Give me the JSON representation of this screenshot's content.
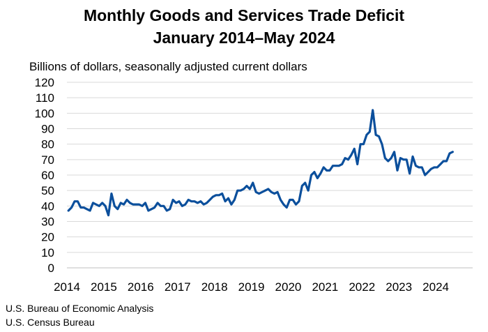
{
  "chart_data": {
    "type": "line",
    "title": "Monthly Goods and Services Trade Deficit",
    "subtitle": "January 2014–May 2024",
    "ylabel": "Billions of dollars, seasonally adjusted current dollars",
    "xlabel": "",
    "ylim": [
      0,
      120
    ],
    "yticks": [
      0,
      10,
      20,
      30,
      40,
      50,
      60,
      70,
      80,
      90,
      100,
      110,
      120
    ],
    "xticks": [
      "2014",
      "2015",
      "2016",
      "2017",
      "2018",
      "2019",
      "2020",
      "2021",
      "2022",
      "2023",
      "2024"
    ],
    "grid": "horizontal",
    "x_start": "2014-01",
    "x_step": "month",
    "series": [
      {
        "color": "#0b4f9c",
        "values": [
          37,
          39,
          43,
          43,
          39,
          39,
          38,
          37,
          42,
          41,
          40,
          42,
          40,
          34,
          48,
          40,
          38,
          42,
          41,
          44,
          42,
          41,
          41,
          41,
          40,
          42,
          37,
          38,
          39,
          42,
          40,
          40,
          37,
          38,
          44,
          42,
          43,
          40,
          41,
          44,
          43,
          43,
          42,
          43,
          41,
          42,
          44,
          46,
          47,
          47,
          48,
          43,
          45,
          41,
          44,
          50,
          50,
          51,
          53,
          51,
          55,
          49,
          48,
          49,
          50,
          51,
          49,
          48,
          49,
          44,
          41,
          39,
          44,
          44,
          41,
          43,
          53,
          55,
          50,
          60,
          62,
          58,
          61,
          65,
          63,
          63,
          66,
          66,
          66,
          67,
          71,
          70,
          73,
          77,
          67,
          80,
          80,
          86,
          88,
          102,
          86,
          85,
          80,
          71,
          69,
          71,
          75,
          63,
          71,
          70,
          70,
          61,
          72,
          66,
          65,
          65,
          60,
          62,
          64,
          65,
          65,
          67,
          69,
          69,
          74,
          75
        ]
      }
    ]
  },
  "source_lines": [
    "U.S. Bureau of Economic Analysis",
    "U.S. Census Bureau"
  ]
}
